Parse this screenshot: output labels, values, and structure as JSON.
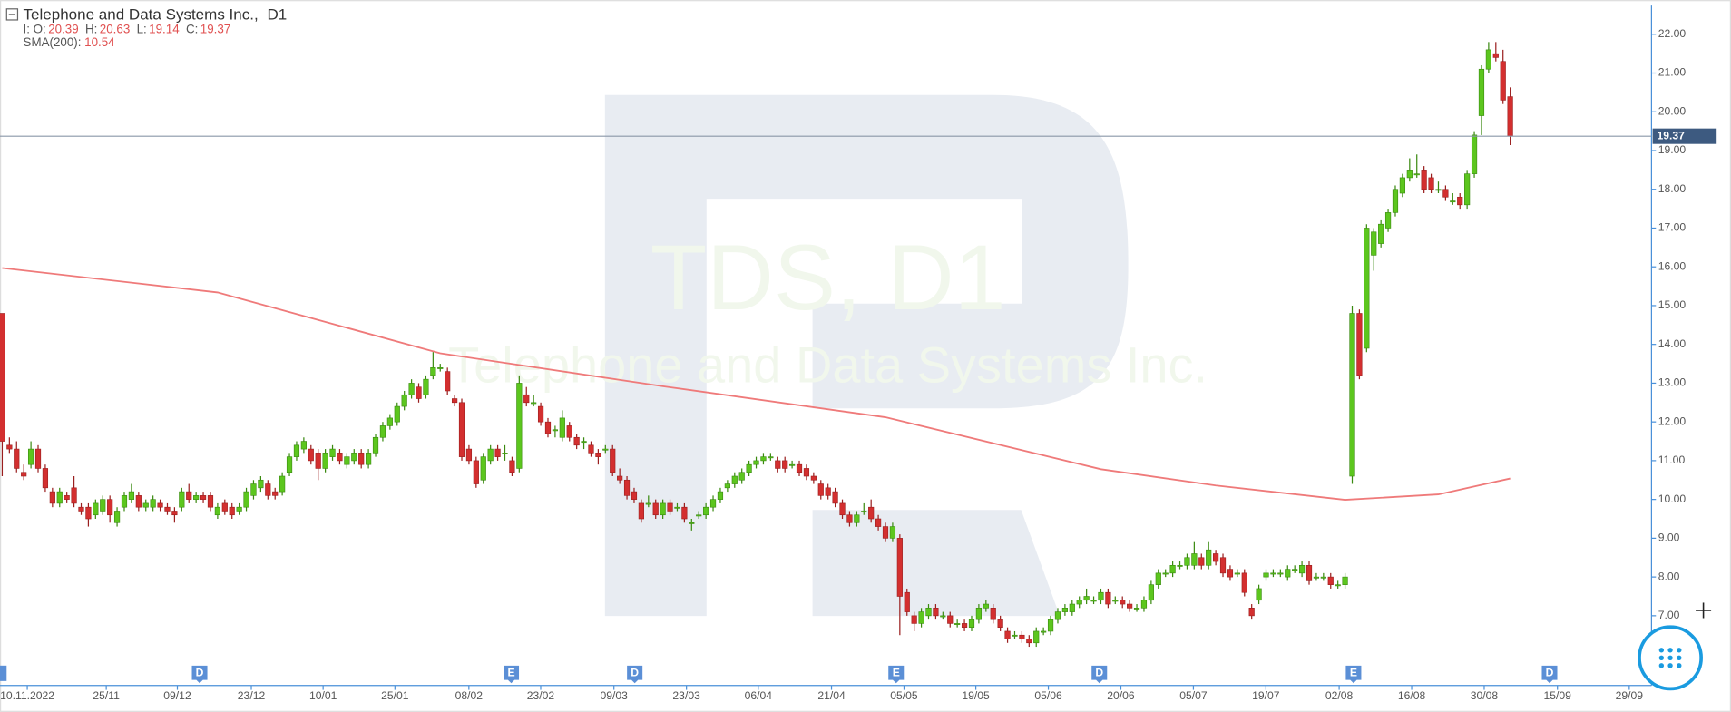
{
  "chart_data": {
    "type": "candlestick",
    "title": "Telephone and Data Systems Inc.,",
    "timeframe": "D1",
    "ohlc_prefix": "I:",
    "ohlc_legend": [
      {
        "label": "O:",
        "value": 20.39
      },
      {
        "label": "H:",
        "value": 20.63
      },
      {
        "label": "L:",
        "value": 19.14
      },
      {
        "label": "C:",
        "value": 19.37
      }
    ],
    "indicator": {
      "name": "SMA(200):",
      "value": 10.54,
      "color": "#ef7a7a",
      "x": [
        0,
        30,
        61,
        92,
        123,
        153,
        169,
        187,
        200,
        210
      ],
      "values": [
        15.97,
        15.34,
        13.77,
        12.92,
        12.12,
        10.78,
        10.36,
        9.99,
        10.13,
        10.54
      ]
    },
    "watermark": [
      "TDS, D1",
      "Telephone and Data Systems Inc."
    ],
    "up_color": "#5cc61e",
    "down_color": "#d32f2f",
    "last_price": 19.37,
    "candles": [
      [
        14.8,
        14.8,
        10.6,
        11.5
      ],
      [
        11.4,
        11.6,
        11.2,
        11.3
      ],
      [
        11.3,
        11.5,
        10.7,
        10.8
      ],
      [
        10.7,
        10.9,
        10.5,
        10.6
      ],
      [
        10.9,
        11.5,
        10.8,
        11.3
      ],
      [
        11.3,
        11.4,
        10.7,
        10.8
      ],
      [
        10.8,
        10.9,
        10.2,
        10.3
      ],
      [
        10.2,
        10.3,
        9.8,
        9.9
      ],
      [
        9.9,
        10.3,
        9.8,
        10.2
      ],
      [
        10.1,
        10.2,
        9.9,
        10.0
      ],
      [
        10.3,
        10.6,
        9.8,
        9.9
      ],
      [
        9.8,
        9.9,
        9.6,
        9.7
      ],
      [
        9.8,
        9.9,
        9.3,
        9.5
      ],
      [
        9.6,
        10.0,
        9.5,
        9.9
      ],
      [
        9.7,
        10.1,
        9.6,
        10.0
      ],
      [
        10.0,
        10.1,
        9.4,
        9.6
      ],
      [
        9.4,
        9.8,
        9.3,
        9.7
      ],
      [
        9.8,
        10.2,
        9.7,
        10.1
      ],
      [
        10.0,
        10.4,
        9.9,
        10.2
      ],
      [
        10.1,
        10.2,
        9.7,
        9.8
      ],
      [
        9.8,
        10.0,
        9.7,
        9.9
      ],
      [
        9.8,
        10.1,
        9.7,
        10.0
      ],
      [
        9.9,
        10.0,
        9.7,
        9.8
      ],
      [
        9.8,
        9.9,
        9.6,
        9.7
      ],
      [
        9.7,
        9.8,
        9.4,
        9.6
      ],
      [
        9.8,
        10.3,
        9.7,
        10.2
      ],
      [
        10.2,
        10.4,
        9.9,
        10.0
      ],
      [
        10.0,
        10.2,
        9.9,
        10.1
      ],
      [
        10.1,
        10.2,
        9.9,
        10.0
      ],
      [
        10.1,
        10.2,
        9.7,
        9.8
      ],
      [
        9.6,
        9.9,
        9.5,
        9.8
      ],
      [
        9.9,
        10.0,
        9.6,
        9.7
      ],
      [
        9.8,
        9.9,
        9.5,
        9.6
      ],
      [
        9.7,
        9.9,
        9.6,
        9.8
      ],
      [
        9.8,
        10.3,
        9.7,
        10.2
      ],
      [
        10.1,
        10.5,
        10.0,
        10.4
      ],
      [
        10.3,
        10.6,
        10.2,
        10.5
      ],
      [
        10.4,
        10.5,
        10.0,
        10.1
      ],
      [
        10.2,
        10.3,
        10.0,
        10.1
      ],
      [
        10.2,
        10.7,
        10.1,
        10.6
      ],
      [
        10.7,
        11.2,
        10.6,
        11.1
      ],
      [
        11.1,
        11.5,
        11.0,
        11.4
      ],
      [
        11.3,
        11.6,
        11.2,
        11.5
      ],
      [
        11.3,
        11.4,
        10.9,
        11.0
      ],
      [
        11.2,
        11.3,
        10.5,
        10.8
      ],
      [
        10.8,
        11.3,
        10.7,
        11.2
      ],
      [
        11.1,
        11.4,
        11.0,
        11.3
      ],
      [
        11.2,
        11.3,
        10.9,
        11.0
      ],
      [
        10.9,
        11.2,
        10.8,
        11.1
      ],
      [
        11.0,
        11.3,
        10.9,
        11.2
      ],
      [
        11.2,
        11.3,
        10.8,
        10.9
      ],
      [
        10.9,
        11.3,
        10.8,
        11.2
      ],
      [
        11.2,
        11.7,
        11.1,
        11.6
      ],
      [
        11.6,
        12.0,
        11.5,
        11.9
      ],
      [
        11.9,
        12.2,
        11.8,
        12.1
      ],
      [
        12.0,
        12.5,
        11.9,
        12.4
      ],
      [
        12.4,
        12.8,
        12.3,
        12.7
      ],
      [
        12.7,
        13.1,
        12.6,
        13.0
      ],
      [
        12.9,
        13.0,
        12.5,
        12.6
      ],
      [
        12.7,
        13.2,
        12.6,
        13.1
      ],
      [
        13.2,
        13.8,
        13.1,
        13.4
      ],
      [
        13.4,
        13.5,
        13.3,
        13.4
      ],
      [
        13.3,
        13.4,
        12.7,
        12.8
      ],
      [
        12.6,
        12.7,
        12.4,
        12.5
      ],
      [
        12.5,
        12.6,
        11.0,
        11.1
      ],
      [
        11.3,
        11.4,
        10.9,
        11.0
      ],
      [
        11.0,
        11.1,
        10.3,
        10.4
      ],
      [
        10.5,
        11.2,
        10.4,
        11.1
      ],
      [
        11.0,
        11.4,
        10.9,
        11.3
      ],
      [
        11.3,
        11.4,
        11.0,
        11.1
      ],
      [
        11.2,
        11.4,
        11.0,
        11.2
      ],
      [
        11.0,
        11.1,
        10.6,
        10.7
      ],
      [
        10.8,
        13.2,
        10.7,
        13.0
      ],
      [
        12.7,
        12.9,
        12.4,
        12.5
      ],
      [
        12.5,
        12.7,
        12.4,
        12.5
      ],
      [
        12.4,
        12.5,
        11.9,
        12.0
      ],
      [
        12.0,
        12.1,
        11.6,
        11.7
      ],
      [
        11.8,
        11.9,
        11.6,
        11.8
      ],
      [
        11.6,
        12.3,
        11.5,
        12.1
      ],
      [
        11.9,
        12.0,
        11.5,
        11.6
      ],
      [
        11.6,
        11.7,
        11.3,
        11.4
      ],
      [
        11.5,
        11.6,
        11.3,
        11.5
      ],
      [
        11.4,
        11.5,
        11.1,
        11.2
      ],
      [
        11.2,
        11.3,
        10.9,
        11.1
      ],
      [
        11.3,
        11.4,
        11.2,
        11.3
      ],
      [
        11.3,
        11.4,
        10.6,
        10.7
      ],
      [
        10.6,
        10.8,
        10.4,
        10.5
      ],
      [
        10.5,
        10.6,
        10.0,
        10.1
      ],
      [
        10.2,
        10.3,
        9.9,
        10.0
      ],
      [
        9.9,
        10.0,
        9.4,
        9.5
      ],
      [
        9.9,
        10.1,
        9.8,
        9.9
      ],
      [
        9.9,
        10.0,
        9.5,
        9.6
      ],
      [
        9.6,
        10.0,
        9.5,
        9.9
      ],
      [
        9.9,
        10.0,
        9.6,
        9.7
      ],
      [
        9.8,
        9.9,
        9.7,
        9.8
      ],
      [
        9.8,
        9.9,
        9.4,
        9.5
      ],
      [
        9.4,
        9.5,
        9.2,
        9.4
      ],
      [
        9.6,
        9.7,
        9.5,
        9.6
      ],
      [
        9.6,
        9.9,
        9.5,
        9.8
      ],
      [
        9.8,
        10.1,
        9.7,
        10.0
      ],
      [
        10.0,
        10.3,
        9.9,
        10.2
      ],
      [
        10.3,
        10.5,
        10.2,
        10.4
      ],
      [
        10.4,
        10.7,
        10.3,
        10.6
      ],
      [
        10.5,
        10.8,
        10.4,
        10.7
      ],
      [
        10.7,
        11.0,
        10.6,
        10.9
      ],
      [
        10.9,
        11.1,
        10.8,
        11.0
      ],
      [
        11.0,
        11.2,
        10.9,
        11.1
      ],
      [
        11.1,
        11.2,
        11.0,
        11.1
      ],
      [
        11.0,
        11.1,
        10.7,
        10.8
      ],
      [
        11.0,
        11.1,
        10.7,
        10.8
      ],
      [
        10.9,
        11.0,
        10.8,
        10.9
      ],
      [
        10.9,
        11.0,
        10.6,
        10.7
      ],
      [
        10.8,
        10.9,
        10.5,
        10.6
      ],
      [
        10.6,
        10.7,
        10.4,
        10.5
      ],
      [
        10.4,
        10.5,
        10.0,
        10.1
      ],
      [
        10.3,
        10.4,
        10.0,
        10.1
      ],
      [
        10.2,
        10.3,
        9.8,
        9.9
      ],
      [
        9.9,
        10.0,
        9.5,
        9.6
      ],
      [
        9.6,
        9.7,
        9.3,
        9.4
      ],
      [
        9.4,
        9.7,
        9.3,
        9.6
      ],
      [
        9.7,
        9.9,
        9.6,
        9.7
      ],
      [
        9.8,
        10.0,
        9.4,
        9.5
      ],
      [
        9.5,
        9.6,
        9.2,
        9.3
      ],
      [
        9.3,
        9.4,
        8.9,
        9.0
      ],
      [
        9.0,
        9.4,
        8.9,
        9.3
      ],
      [
        9.0,
        9.1,
        6.5,
        7.5
      ],
      [
        7.6,
        7.7,
        7.0,
        7.1
      ],
      [
        7.0,
        7.1,
        6.6,
        6.8
      ],
      [
        6.8,
        7.2,
        6.7,
        7.1
      ],
      [
        7.0,
        7.3,
        6.9,
        7.2
      ],
      [
        7.2,
        7.3,
        6.9,
        7.0
      ],
      [
        7.0,
        7.1,
        6.9,
        7.0
      ],
      [
        7.0,
        7.1,
        6.7,
        6.8
      ],
      [
        6.8,
        6.9,
        6.7,
        6.8
      ],
      [
        6.8,
        6.9,
        6.6,
        6.7
      ],
      [
        6.7,
        7.0,
        6.6,
        6.9
      ],
      [
        6.9,
        7.3,
        6.8,
        7.2
      ],
      [
        7.2,
        7.4,
        7.1,
        7.3
      ],
      [
        7.2,
        7.3,
        6.8,
        6.9
      ],
      [
        6.9,
        7.0,
        6.6,
        6.7
      ],
      [
        6.6,
        6.7,
        6.3,
        6.4
      ],
      [
        6.5,
        6.6,
        6.4,
        6.5
      ],
      [
        6.5,
        6.6,
        6.3,
        6.4
      ],
      [
        6.4,
        6.5,
        6.2,
        6.3
      ],
      [
        6.3,
        6.7,
        6.2,
        6.6
      ],
      [
        6.6,
        6.7,
        6.5,
        6.6
      ],
      [
        6.6,
        7.0,
        6.5,
        6.9
      ],
      [
        6.9,
        7.2,
        6.8,
        7.1
      ],
      [
        7.1,
        7.3,
        7.0,
        7.2
      ],
      [
        7.1,
        7.4,
        7.0,
        7.3
      ],
      [
        7.3,
        7.5,
        7.2,
        7.4
      ],
      [
        7.4,
        7.7,
        7.3,
        7.5
      ],
      [
        7.4,
        7.5,
        7.3,
        7.4
      ],
      [
        7.4,
        7.7,
        7.3,
        7.6
      ],
      [
        7.6,
        7.7,
        7.2,
        7.3
      ],
      [
        7.4,
        7.5,
        7.3,
        7.4
      ],
      [
        7.4,
        7.5,
        7.2,
        7.3
      ],
      [
        7.3,
        7.4,
        7.1,
        7.2
      ],
      [
        7.2,
        7.3,
        7.1,
        7.2
      ],
      [
        7.2,
        7.5,
        7.1,
        7.4
      ],
      [
        7.4,
        7.9,
        7.3,
        7.8
      ],
      [
        7.8,
        8.2,
        7.7,
        8.1
      ],
      [
        8.1,
        8.2,
        8.0,
        8.1
      ],
      [
        8.1,
        8.4,
        8.0,
        8.3
      ],
      [
        8.3,
        8.4,
        8.2,
        8.3
      ],
      [
        8.3,
        8.6,
        8.2,
        8.5
      ],
      [
        8.3,
        8.9,
        8.2,
        8.6
      ],
      [
        8.5,
        8.6,
        8.2,
        8.3
      ],
      [
        8.3,
        8.9,
        8.2,
        8.7
      ],
      [
        8.6,
        8.7,
        8.3,
        8.4
      ],
      [
        8.5,
        8.6,
        8.0,
        8.1
      ],
      [
        8.2,
        8.3,
        7.9,
        8.0
      ],
      [
        8.1,
        8.2,
        8.0,
        8.1
      ],
      [
        8.1,
        8.2,
        7.5,
        7.6
      ],
      [
        7.2,
        7.3,
        6.9,
        7.0
      ],
      [
        7.4,
        7.8,
        7.3,
        7.7
      ],
      [
        8.0,
        8.2,
        7.9,
        8.1
      ],
      [
        8.1,
        8.2,
        8.0,
        8.1
      ],
      [
        8.1,
        8.2,
        8.0,
        8.1
      ],
      [
        8.0,
        8.3,
        7.9,
        8.2
      ],
      [
        8.2,
        8.3,
        8.1,
        8.2
      ],
      [
        8.1,
        8.4,
        8.0,
        8.3
      ],
      [
        8.3,
        8.4,
        7.8,
        7.9
      ],
      [
        8.0,
        8.1,
        7.9,
        8.0
      ],
      [
        8.0,
        8.1,
        7.9,
        8.0
      ],
      [
        8.0,
        8.1,
        7.7,
        7.8
      ],
      [
        7.8,
        7.9,
        7.7,
        7.8
      ],
      [
        7.8,
        8.1,
        7.7,
        8.0
      ],
      [
        10.6,
        15.0,
        10.4,
        14.8
      ],
      [
        14.8,
        14.9,
        13.1,
        13.2
      ],
      [
        13.9,
        17.1,
        13.8,
        17.0
      ],
      [
        16.3,
        17.0,
        15.9,
        16.9
      ],
      [
        16.6,
        17.2,
        16.5,
        17.1
      ],
      [
        17.0,
        17.5,
        16.9,
        17.4
      ],
      [
        17.4,
        18.1,
        17.3,
        18.0
      ],
      [
        17.9,
        18.4,
        17.8,
        18.3
      ],
      [
        18.3,
        18.8,
        18.2,
        18.5
      ],
      [
        18.4,
        18.9,
        18.3,
        18.4
      ],
      [
        18.5,
        18.6,
        17.9,
        18.0
      ],
      [
        18.3,
        18.4,
        17.9,
        18.0
      ],
      [
        18.0,
        18.2,
        17.9,
        18.0
      ],
      [
        18.0,
        18.1,
        17.7,
        17.8
      ],
      [
        17.7,
        17.9,
        17.6,
        17.7
      ],
      [
        17.8,
        17.9,
        17.5,
        17.6
      ],
      [
        17.6,
        18.5,
        17.5,
        18.4
      ],
      [
        18.4,
        19.5,
        18.3,
        19.4
      ],
      [
        19.9,
        21.2,
        19.4,
        21.1
      ],
      [
        21.1,
        21.8,
        21.0,
        21.6
      ],
      [
        21.5,
        21.8,
        21.3,
        21.4
      ],
      [
        21.3,
        21.6,
        20.2,
        20.3
      ],
      [
        20.39,
        20.63,
        19.14,
        19.37
      ]
    ],
    "xlim": [
      -0.3,
      229.7
    ],
    "xticks": [
      {
        "value": 3.5,
        "label": "10.11.2022"
      },
      {
        "value": 14.5,
        "label": "25/11"
      },
      {
        "value": 24.4,
        "label": "09/12"
      },
      {
        "value": 34.7,
        "label": "23/12"
      },
      {
        "value": 44.7,
        "label": "10/01"
      },
      {
        "value": 54.7,
        "label": "25/01"
      },
      {
        "value": 65,
        "label": "08/02"
      },
      {
        "value": 75,
        "label": "23/02"
      },
      {
        "value": 85.2,
        "label": "09/03"
      },
      {
        "value": 95.3,
        "label": "23/03"
      },
      {
        "value": 105.3,
        "label": "06/04"
      },
      {
        "value": 115.5,
        "label": "21/04"
      },
      {
        "value": 125.6,
        "label": "05/05"
      },
      {
        "value": 135.6,
        "label": "19/05"
      },
      {
        "value": 145.7,
        "label": "05/06"
      },
      {
        "value": 155.8,
        "label": "20/06"
      },
      {
        "value": 165.9,
        "label": "05/07"
      },
      {
        "value": 176,
        "label": "19/07"
      },
      {
        "value": 186.2,
        "label": "02/08"
      },
      {
        "value": 196.3,
        "label": "16/08"
      },
      {
        "value": 206.4,
        "label": "30/08"
      },
      {
        "value": 216.6,
        "label": "15/09"
      },
      {
        "value": 226.6,
        "label": "29/09"
      }
    ],
    "ylim": [
      5.23,
      22.74
    ],
    "yticks": [
      {
        "value": 7,
        "label": "7.00"
      },
      {
        "value": 8,
        "label": "8.00"
      },
      {
        "value": 9,
        "label": "9.00"
      },
      {
        "value": 10,
        "label": "10.00"
      },
      {
        "value": 11,
        "label": "11.00"
      },
      {
        "value": 12,
        "label": "12.00"
      },
      {
        "value": 13,
        "label": "13.00"
      },
      {
        "value": 14,
        "label": "14.00"
      },
      {
        "value": 15,
        "label": "15.00"
      },
      {
        "value": 16,
        "label": "16.00"
      },
      {
        "value": 17,
        "label": "17.00"
      },
      {
        "value": 18,
        "label": "18.00"
      },
      {
        "value": 19,
        "label": "19.00"
      },
      {
        "value": 20,
        "label": "20.00"
      },
      {
        "value": 21,
        "label": "21.00"
      },
      {
        "value": 22,
        "label": "22.00"
      }
    ],
    "events": [
      {
        "label": "D",
        "x": 27.5
      },
      {
        "label": "E",
        "x": 70.9
      },
      {
        "label": "D",
        "x": 88.1
      },
      {
        "label": "E",
        "x": 124.5
      },
      {
        "label": "D",
        "x": 152.8
      },
      {
        "label": "E",
        "x": 188.2
      },
      {
        "label": "D",
        "x": 215.5
      }
    ]
  }
}
